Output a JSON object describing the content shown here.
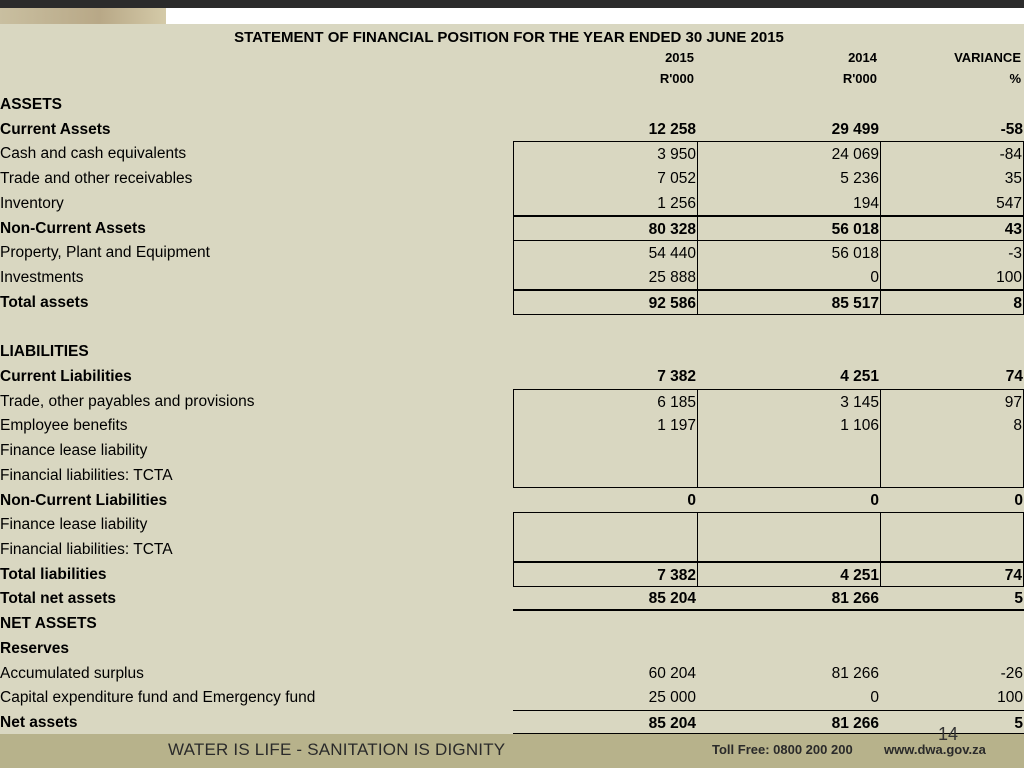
{
  "title": "STATEMENT OF FINANCIAL POSITION FOR THE YEAR ENDED 30 JUNE 2015",
  "header": {
    "columns": [
      "2015",
      "2014",
      "VARIANCE"
    ],
    "units": [
      "R'000",
      "R'000",
      "%"
    ]
  },
  "rows": [
    [
      "ASSETS"
    ],
    [
      "Current Assets",
      "12 258",
      "29 499",
      "-58"
    ],
    [
      "Cash and cash equivalents",
      "3 950",
      "24 069",
      "-84"
    ],
    [
      "Trade and other receivables",
      "7 052",
      "5 236",
      "35"
    ],
    [
      "Inventory",
      "1 256",
      "194",
      "547"
    ],
    [
      "Non-Current Assets",
      "80 328",
      "56 018",
      "43"
    ],
    [
      "Property, Plant and Equipment",
      "54 440",
      "56 018",
      "-3"
    ],
    [
      "Investments",
      "25 888",
      "0",
      "100"
    ],
    [
      "Total assets",
      "92 586",
      "85 517",
      "8"
    ],
    [
      "LIABILITIES"
    ],
    [
      "Current Liabilities",
      "7 382",
      "4 251",
      "74"
    ],
    [
      "Trade, other payables and provisions",
      "6 185",
      "3 145",
      "97"
    ],
    [
      "Employee benefits",
      "1 197",
      "1 106",
      "8"
    ],
    [
      "Finance lease liability"
    ],
    [
      "Financial liabilities: TCTA"
    ],
    [
      "Non-Current Liabilities",
      "0",
      "0",
      "0"
    ],
    [
      "Finance lease liability"
    ],
    [
      "Financial liabilities: TCTA"
    ],
    [
      "Total liabilities",
      "7 382",
      "4 251",
      "74"
    ],
    [
      "Total net assets",
      "85 204",
      "81 266",
      "5"
    ],
    [
      "NET ASSETS"
    ],
    [
      "Reserves"
    ],
    [
      "Accumulated surplus",
      "60 204",
      "81 266",
      "-26"
    ],
    [
      "Capital expenditure fund and Emergency fund",
      "25 000",
      "0",
      "100"
    ],
    [
      "Net assets",
      "85 204",
      "81 266",
      "5"
    ]
  ],
  "footer": {
    "slogan": "WATER IS LIFE - SANITATION IS DIGNITY",
    "toll_free": "Toll Free: 0800 200 200",
    "website": "www.dwa.gov.za"
  },
  "page_number": "14"
}
